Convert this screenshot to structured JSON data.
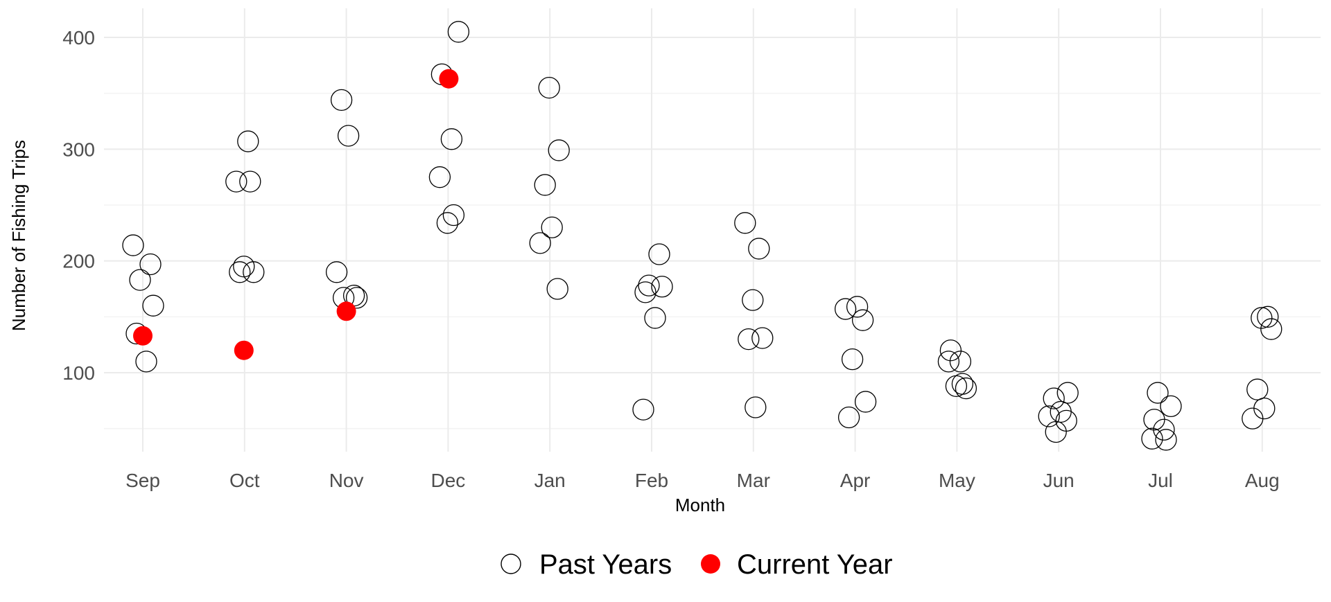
{
  "chart_data": {
    "type": "scatter",
    "title": "",
    "xlabel": "Month",
    "ylabel": "Number of Fishing Trips",
    "categories": [
      "Sep",
      "Oct",
      "Nov",
      "Dec",
      "Jan",
      "Feb",
      "Mar",
      "Apr",
      "May",
      "Jun",
      "Jul",
      "Aug"
    ],
    "yticks": [
      100,
      200,
      300,
      400
    ],
    "ylim": [
      30,
      415
    ],
    "grid": true,
    "legend_position": "bottom",
    "series": [
      {
        "name": "Past Years",
        "marker": "open-circle",
        "color": "#000000",
        "points": [
          {
            "month": "Sep",
            "y": 214
          },
          {
            "month": "Sep",
            "y": 197
          },
          {
            "month": "Sep",
            "y": 183
          },
          {
            "month": "Sep",
            "y": 160
          },
          {
            "month": "Sep",
            "y": 135
          },
          {
            "month": "Sep",
            "y": 110
          },
          {
            "month": "Oct",
            "y": 307
          },
          {
            "month": "Oct",
            "y": 271
          },
          {
            "month": "Oct",
            "y": 271
          },
          {
            "month": "Oct",
            "y": 195
          },
          {
            "month": "Oct",
            "y": 190
          },
          {
            "month": "Oct",
            "y": 190
          },
          {
            "month": "Nov",
            "y": 344
          },
          {
            "month": "Nov",
            "y": 312
          },
          {
            "month": "Nov",
            "y": 190
          },
          {
            "month": "Nov",
            "y": 169
          },
          {
            "month": "Nov",
            "y": 167
          },
          {
            "month": "Nov",
            "y": 167
          },
          {
            "month": "Dec",
            "y": 405
          },
          {
            "month": "Dec",
            "y": 367
          },
          {
            "month": "Dec",
            "y": 309
          },
          {
            "month": "Dec",
            "y": 275
          },
          {
            "month": "Dec",
            "y": 241
          },
          {
            "month": "Dec",
            "y": 234
          },
          {
            "month": "Jan",
            "y": 355
          },
          {
            "month": "Jan",
            "y": 299
          },
          {
            "month": "Jan",
            "y": 268
          },
          {
            "month": "Jan",
            "y": 230
          },
          {
            "month": "Jan",
            "y": 216
          },
          {
            "month": "Jan",
            "y": 175
          },
          {
            "month": "Feb",
            "y": 206
          },
          {
            "month": "Feb",
            "y": 178
          },
          {
            "month": "Feb",
            "y": 177
          },
          {
            "month": "Feb",
            "y": 172
          },
          {
            "month": "Feb",
            "y": 149
          },
          {
            "month": "Feb",
            "y": 67
          },
          {
            "month": "Mar",
            "y": 234
          },
          {
            "month": "Mar",
            "y": 211
          },
          {
            "month": "Mar",
            "y": 165
          },
          {
            "month": "Mar",
            "y": 131
          },
          {
            "month": "Mar",
            "y": 130
          },
          {
            "month": "Mar",
            "y": 69
          },
          {
            "month": "Apr",
            "y": 159
          },
          {
            "month": "Apr",
            "y": 157
          },
          {
            "month": "Apr",
            "y": 147
          },
          {
            "month": "Apr",
            "y": 112
          },
          {
            "month": "Apr",
            "y": 74
          },
          {
            "month": "Apr",
            "y": 60
          },
          {
            "month": "May",
            "y": 120
          },
          {
            "month": "May",
            "y": 110
          },
          {
            "month": "May",
            "y": 110
          },
          {
            "month": "May",
            "y": 90
          },
          {
            "month": "May",
            "y": 88
          },
          {
            "month": "May",
            "y": 86
          },
          {
            "month": "Jun",
            "y": 82
          },
          {
            "month": "Jun",
            "y": 77
          },
          {
            "month": "Jun",
            "y": 65
          },
          {
            "month": "Jun",
            "y": 61
          },
          {
            "month": "Jun",
            "y": 57
          },
          {
            "month": "Jun",
            "y": 47
          },
          {
            "month": "Jul",
            "y": 82
          },
          {
            "month": "Jul",
            "y": 70
          },
          {
            "month": "Jul",
            "y": 58
          },
          {
            "month": "Jul",
            "y": 49
          },
          {
            "month": "Jul",
            "y": 41
          },
          {
            "month": "Jul",
            "y": 40
          },
          {
            "month": "Aug",
            "y": 150
          },
          {
            "month": "Aug",
            "y": 149
          },
          {
            "month": "Aug",
            "y": 139
          },
          {
            "month": "Aug",
            "y": 85
          },
          {
            "month": "Aug",
            "y": 68
          },
          {
            "month": "Aug",
            "y": 59
          }
        ]
      },
      {
        "name": "Current Year",
        "marker": "filled-circle",
        "color": "#ff0000",
        "points": [
          {
            "month": "Sep",
            "y": 133
          },
          {
            "month": "Oct",
            "y": 120
          },
          {
            "month": "Nov",
            "y": 155
          },
          {
            "month": "Dec",
            "y": 363
          }
        ]
      }
    ]
  }
}
